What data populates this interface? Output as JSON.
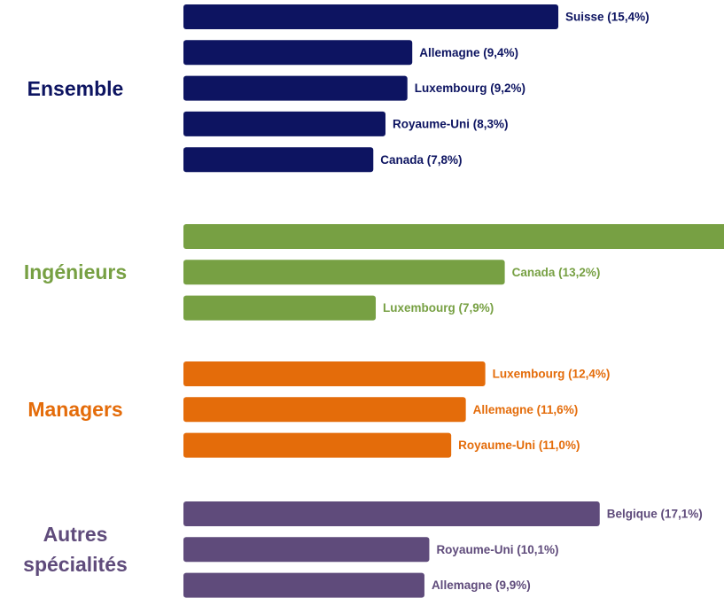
{
  "chart_data": {
    "type": "bar",
    "orientation": "horizontal",
    "groups": [
      {
        "name": "Ensemble",
        "color": "#0d1461",
        "values": [
          15.4,
          9.4,
          9.2,
          8.3,
          7.8
        ],
        "value_labels": [
          "Suisse (15,4%)",
          "Allemagne (9,4%)",
          "Luxembourg (9,2%)",
          "Royaume-Uni (8,3%)",
          "Canada (7,8%)"
        ]
      },
      {
        "name": "Ingénieurs",
        "color": "#77a043",
        "values": [
          23,
          13.2,
          7.9
        ],
        "value_labels": [
          null,
          "Canada (13,2%)",
          "Luxembourg (7,9%)"
        ]
      },
      {
        "name": "Managers",
        "color": "#e46c0a",
        "values": [
          12.4,
          11.6,
          11.0
        ],
        "value_labels": [
          "Luxembourg (12,4%)",
          "Allemagne (11,6%)",
          "Royaume-Uni (11,0%)"
        ]
      },
      {
        "name": "Autres spécialités",
        "color": "#5f4b7b",
        "values": [
          17.1,
          10.1,
          9.9
        ],
        "value_labels": [
          "Belgique (17,1%)",
          "Royaume-Uni (10,1%)",
          "Allemagne (9,9%)"
        ]
      }
    ]
  }
}
